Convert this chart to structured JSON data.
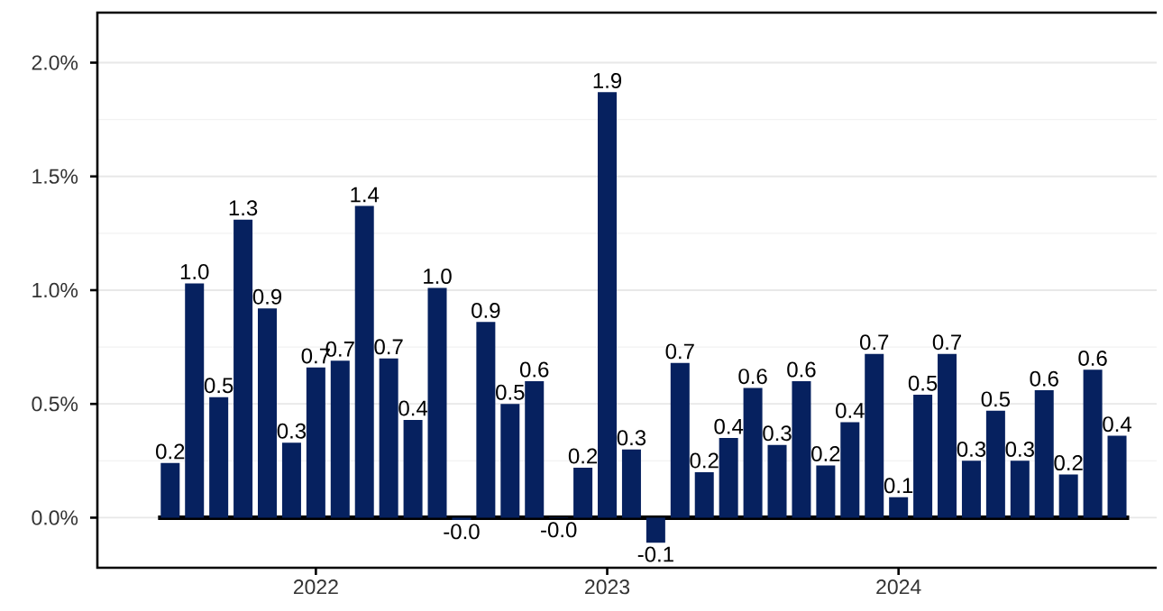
{
  "chart_data": {
    "type": "bar",
    "x": [
      "2021-07",
      "2021-08",
      "2021-09",
      "2021-10",
      "2021-11",
      "2021-12",
      "2022-01",
      "2022-02",
      "2022-03",
      "2022-04",
      "2022-05",
      "2022-06",
      "2022-07",
      "2022-08",
      "2022-09",
      "2022-10",
      "2022-11",
      "2022-12",
      "2023-01",
      "2023-02",
      "2023-03",
      "2023-04",
      "2023-05",
      "2023-06",
      "2023-07",
      "2023-08",
      "2023-09",
      "2023-10",
      "2023-11",
      "2023-12",
      "2024-01",
      "2024-02",
      "2024-03",
      "2024-04",
      "2024-05",
      "2024-06",
      "2024-07",
      "2024-08",
      "2024-09",
      "2024-10"
    ],
    "values": [
      0.24,
      1.03,
      0.53,
      1.31,
      0.92,
      0.33,
      0.66,
      0.69,
      1.37,
      0.7,
      0.43,
      1.01,
      -0.01,
      0.86,
      0.5,
      0.6,
      -0.002,
      0.22,
      1.87,
      0.3,
      -0.11,
      0.68,
      0.2,
      0.35,
      0.57,
      0.32,
      0.6,
      0.23,
      0.42,
      0.72,
      0.09,
      0.54,
      0.72,
      0.25,
      0.47,
      0.25,
      0.56,
      0.19,
      0.65,
      0.36
    ],
    "value_labels": [
      "0.2",
      "1.0",
      "0.5",
      "1.3",
      "0.9",
      "0.3",
      "0.7",
      "0.7",
      "1.4",
      "0.7",
      "0.4",
      "1.0",
      "-0.0",
      "0.9",
      "0.5",
      "0.6",
      "-0.0",
      "0.2",
      "1.9",
      "0.3",
      "-0.1",
      "0.7",
      "0.2",
      "0.4",
      "0.6",
      "0.3",
      "0.6",
      "0.2",
      "0.4",
      "0.7",
      "0.1",
      "0.5",
      "0.7",
      "0.3",
      "0.5",
      "0.3",
      "0.6",
      "0.2",
      "0.6",
      "0.4"
    ],
    "color": "#06215f",
    "xlim": [
      "2021-04",
      "2024-11-20"
    ],
    "xticks": [
      {
        "value": "2022-01",
        "label": "2022"
      },
      {
        "value": "2023-01",
        "label": "2023"
      },
      {
        "value": "2024-01",
        "label": "2024"
      }
    ],
    "ylim": [
      -0.22,
      2.22
    ],
    "yticks": [
      {
        "value": 0,
        "label": "0.0%"
      },
      {
        "value": 0.5,
        "label": "0.5%"
      },
      {
        "value": 1,
        "label": "1.0%"
      },
      {
        "value": 1.5,
        "label": "1.5%"
      },
      {
        "value": 2,
        "label": "2.0%"
      }
    ],
    "grid": "y",
    "ref_lines": [
      {
        "axis": "y",
        "value": 0,
        "color": "#000000"
      }
    ]
  }
}
